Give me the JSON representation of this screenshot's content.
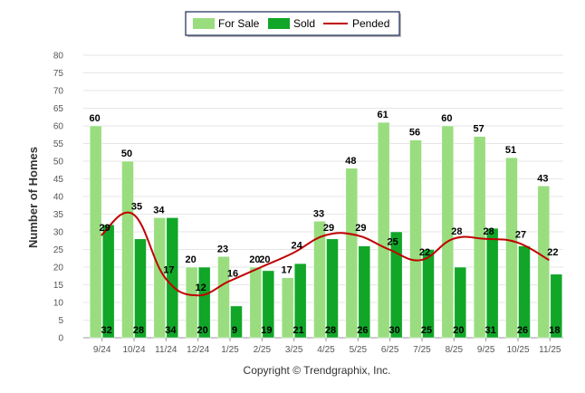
{
  "chart_data": {
    "type": "bar",
    "title": "",
    "xlabel": "",
    "ylabel": "Number of Homes",
    "ylim": [
      0,
      80
    ],
    "ytick_step": 5,
    "grid": true,
    "legend_placement": "top-center",
    "categories": [
      "9/24",
      "10/24",
      "11/24",
      "12/24",
      "1/25",
      "2/25",
      "3/25",
      "4/25",
      "5/25",
      "6/25",
      "7/25",
      "8/25",
      "9/25",
      "10/25",
      "11/25"
    ],
    "series": [
      {
        "name": "For Sale",
        "kind": "bar",
        "color": "#99dd7f",
        "values": [
          60,
          50,
          34,
          20,
          23,
          20,
          17,
          33,
          48,
          61,
          56,
          60,
          57,
          51,
          43
        ]
      },
      {
        "name": "Sold",
        "kind": "bar",
        "color": "#11a628",
        "values": [
          32,
          28,
          34,
          20,
          9,
          19,
          21,
          28,
          26,
          30,
          25,
          20,
          31,
          26,
          18
        ]
      },
      {
        "name": "Pended",
        "kind": "line",
        "color": "#c00000",
        "values": [
          29,
          35,
          17,
          12,
          16,
          20,
          24,
          29,
          29,
          25,
          22,
          28,
          28,
          27,
          22
        ]
      }
    ]
  },
  "footer": {
    "copyright": "Copyright © Trendgraphix, Inc."
  }
}
